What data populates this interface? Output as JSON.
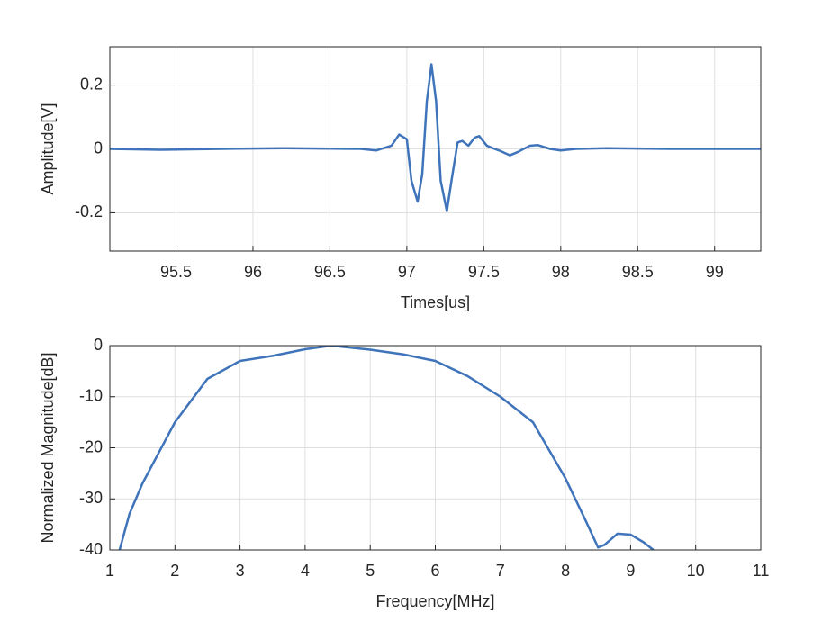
{
  "chart_data": [
    {
      "type": "line",
      "color": "#3f74bb",
      "grid": true,
      "xlabel": "Times[us]",
      "ylabel": "Amplitude[V]",
      "xlim": [
        95.07,
        99.3
      ],
      "ylim": [
        -0.32,
        0.32
      ],
      "xticks": [
        95.5,
        96,
        96.5,
        97,
        97.5,
        98,
        98.5,
        99
      ],
      "yticks": [
        -0.2,
        0,
        0.2
      ],
      "x": [
        95.07,
        95.4,
        95.8,
        96.2,
        96.7,
        96.8,
        96.9,
        96.95,
        97.0,
        97.03,
        97.07,
        97.1,
        97.13,
        97.16,
        97.19,
        97.22,
        97.26,
        97.29,
        97.33,
        97.36,
        97.4,
        97.44,
        97.47,
        97.52,
        97.57,
        97.6,
        97.67,
        97.72,
        97.8,
        97.85,
        97.93,
        98.0,
        98.1,
        98.3,
        98.7,
        99.3
      ],
      "values": [
        0,
        -0.003,
        0,
        0.002,
        0,
        -0.005,
        0.01,
        0.045,
        0.03,
        -0.1,
        -0.165,
        -0.08,
        0.15,
        0.265,
        0.15,
        -0.1,
        -0.195,
        -0.1,
        0.02,
        0.025,
        0.01,
        0.035,
        0.04,
        0.01,
        0.0,
        -0.005,
        -0.02,
        -0.01,
        0.01,
        0.012,
        0,
        -0.005,
        0,
        0.002,
        0,
        0
      ]
    },
    {
      "type": "line",
      "color": "#3f74bb",
      "grid": true,
      "xlabel": "Frequency[MHz]",
      "ylabel": "Normalized Magnitude[dB]",
      "xlim": [
        1,
        11
      ],
      "ylim": [
        -40,
        0
      ],
      "xticks": [
        1,
        2,
        3,
        4,
        5,
        6,
        7,
        8,
        9,
        10,
        11
      ],
      "yticks": [
        -40,
        -30,
        -20,
        -10,
        0
      ],
      "x": [
        1.15,
        1.3,
        1.5,
        2,
        2.5,
        3,
        3.5,
        4,
        4.4,
        5,
        5.5,
        6,
        6.5,
        7,
        7.5,
        8,
        8.3,
        8.5,
        8.6,
        8.8,
        9,
        9.2,
        9.35
      ],
      "values": [
        -40,
        -33,
        -27,
        -15,
        -6.5,
        -3,
        -2,
        -0.7,
        0,
        -0.8,
        -1.7,
        -3,
        -6,
        -10,
        -15,
        -26,
        -34,
        -39.5,
        -39,
        -36.8,
        -37,
        -38.5,
        -40
      ]
    }
  ]
}
